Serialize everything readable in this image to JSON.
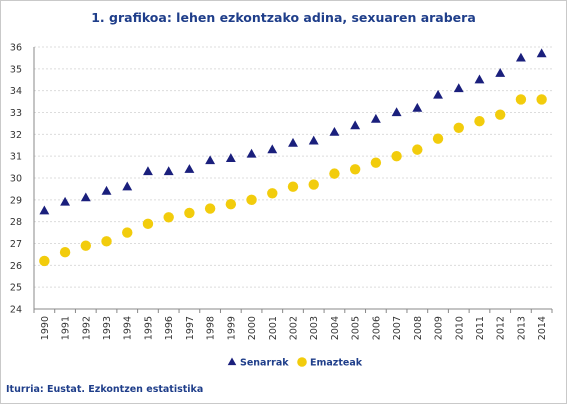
{
  "chart_data": {
    "type": "scatter",
    "title": "1. grafikoa: lehen ezkontzako adina, sexuaren arabera",
    "x": [
      1990,
      1991,
      1992,
      1993,
      1994,
      1995,
      1996,
      1997,
      1998,
      1999,
      2000,
      2001,
      2002,
      2003,
      2004,
      2005,
      2006,
      2007,
      2008,
      2009,
      2010,
      2011,
      2012,
      2013,
      2014
    ],
    "x_tick_labels": [
      "1990",
      "1991",
      "1992",
      "1993",
      "1994",
      "1995",
      "1996",
      "1997",
      "1998",
      "1999",
      "2000",
      "2001",
      "2002",
      "2003",
      "2004",
      "2005",
      "2006",
      "2007",
      "2008",
      "2009",
      "2010",
      "2011",
      "2012",
      "2013",
      "2014"
    ],
    "ylim": [
      24,
      36
    ],
    "y_tick_labels": [
      "24",
      "25",
      "26",
      "27",
      "28",
      "29",
      "30",
      "31",
      "32",
      "33",
      "34",
      "35",
      "36"
    ],
    "grid": true,
    "legend_position": "bottom",
    "series": [
      {
        "name": "Senarrak",
        "marker": "triangle",
        "color": "#1a1f7c",
        "values": [
          28.5,
          28.9,
          29.1,
          29.4,
          29.6,
          30.3,
          30.3,
          30.4,
          30.8,
          30.9,
          31.1,
          31.3,
          31.6,
          31.7,
          32.1,
          32.4,
          32.7,
          33.0,
          33.2,
          33.8,
          34.1,
          34.5,
          34.8,
          35.5,
          35.7
        ]
      },
      {
        "name": "Emazteak",
        "marker": "circle",
        "color": "#f2cc0c",
        "values": [
          26.2,
          26.6,
          26.9,
          27.1,
          27.5,
          27.9,
          28.2,
          28.4,
          28.6,
          28.8,
          29.0,
          29.3,
          29.6,
          29.7,
          30.2,
          30.4,
          30.7,
          31.0,
          31.3,
          31.8,
          32.3,
          32.6,
          32.9,
          33.6,
          33.6
        ]
      }
    ]
  },
  "source": "Iturria: Eustat. Ezkontzen estatistika"
}
